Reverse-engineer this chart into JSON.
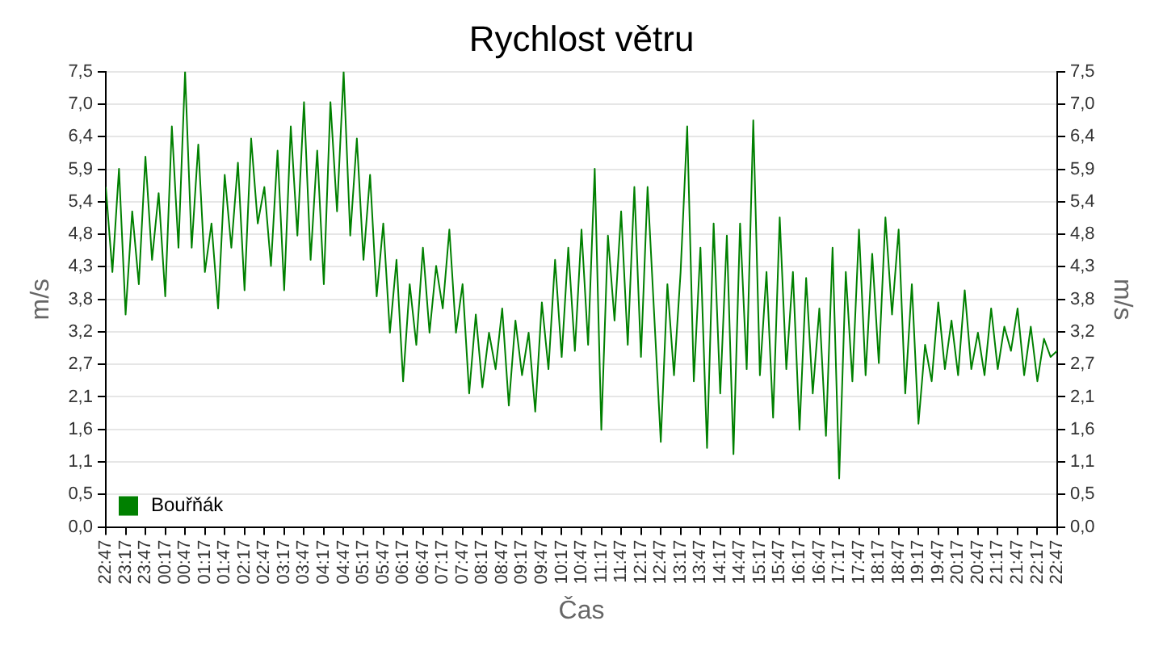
{
  "chart_data": {
    "type": "line",
    "title": "Rychlost větru",
    "xlabel": "Čas",
    "ylabel": "m/s",
    "y2label": "m/s",
    "x": [
      "--01-01T22:47",
      "--01-01T22:57",
      "--01-01T23:07",
      "--01-01T23:17",
      "--01-01T23:27",
      "--01-01T23:37",
      "--01-01T23:47",
      "--01-01T23:57",
      "--01-02T00:07",
      "--01-02T00:17",
      "--01-02T00:27",
      "--01-02T00:37",
      "--01-02T00:47",
      "--01-02T00:57",
      "--01-02T01:07",
      "--01-02T01:17",
      "--01-02T01:27",
      "--01-02T01:37",
      "--01-02T01:47",
      "--01-02T01:57",
      "--01-02T02:07",
      "--01-02T02:17",
      "--01-02T02:27",
      "--01-02T02:37",
      "--01-02T02:47",
      "--01-02T02:57",
      "--01-02T03:07",
      "--01-02T03:17",
      "--01-02T03:27",
      "--01-02T03:37",
      "--01-02T03:47",
      "--01-02T03:57",
      "--01-02T04:07",
      "--01-02T04:17",
      "--01-02T04:27",
      "--01-02T04:37",
      "--01-02T04:47",
      "--01-02T04:57",
      "--01-02T05:07",
      "--01-02T05:17",
      "--01-02T05:27",
      "--01-02T05:37",
      "--01-02T05:47",
      "--01-02T05:57",
      "--01-02T06:07",
      "--01-02T06:17",
      "--01-02T06:27",
      "--01-02T06:37",
      "--01-02T06:47",
      "--01-02T06:57",
      "--01-02T07:07",
      "--01-02T07:17",
      "--01-02T07:27",
      "--01-02T07:37",
      "--01-02T07:47",
      "--01-02T07:57",
      "--01-02T08:07",
      "--01-02T08:17",
      "--01-02T08:27",
      "--01-02T08:37",
      "--01-02T08:47",
      "--01-02T08:57",
      "--01-02T09:07",
      "--01-02T09:17",
      "--01-02T09:27",
      "--01-02T09:37",
      "--01-02T09:47",
      "--01-02T09:57",
      "--01-02T10:07",
      "--01-02T10:17",
      "--01-02T10:27",
      "--01-02T10:37",
      "--01-02T10:47",
      "--01-02T10:57",
      "--01-02T11:07",
      "--01-02T11:17",
      "--01-02T11:27",
      "--01-02T11:37",
      "--01-02T11:47",
      "--01-02T11:57",
      "--01-02T12:07",
      "--01-02T12:17",
      "--01-02T12:27",
      "--01-02T12:37",
      "--01-02T12:47",
      "--01-02T12:57",
      "--01-02T13:07",
      "--01-02T13:17",
      "--01-02T13:27",
      "--01-02T13:37",
      "--01-02T13:47",
      "--01-02T13:57",
      "--01-02T14:07",
      "--01-02T14:17",
      "--01-02T14:27",
      "--01-02T14:37",
      "--01-02T14:47",
      "--01-02T14:57",
      "--01-02T15:07",
      "--01-02T15:17",
      "--01-02T15:27",
      "--01-02T15:37",
      "--01-02T15:47",
      "--01-02T15:57",
      "--01-02T16:07",
      "--01-02T16:17",
      "--01-02T16:27",
      "--01-02T16:37",
      "--01-02T16:47",
      "--01-02T16:57",
      "--01-02T17:07",
      "--01-02T17:17",
      "--01-02T17:27",
      "--01-02T17:37",
      "--01-02T17:47",
      "--01-02T17:57",
      "--01-02T18:07",
      "--01-02T18:17",
      "--01-02T18:27",
      "--01-02T18:37",
      "--01-02T18:47",
      "--01-02T18:57",
      "--01-02T19:07",
      "--01-02T19:17",
      "--01-02T19:27",
      "--01-02T19:37",
      "--01-02T19:47",
      "--01-02T19:57",
      "--01-02T20:07",
      "--01-02T20:17",
      "--01-02T20:27",
      "--01-02T20:37",
      "--01-02T20:47",
      "--01-02T20:57",
      "--01-02T21:07",
      "--01-02T21:17",
      "--01-02T21:27",
      "--01-02T21:37",
      "--01-02T21:47",
      "--01-02T21:57",
      "--01-02T22:07",
      "--01-02T22:17",
      "--01-02T22:27",
      "--01-02T22:37",
      "--01-02T22:47"
    ],
    "series": [
      {
        "name": "Bouřňák",
        "color": "#008000",
        "values": [
          5.6,
          4.2,
          5.9,
          3.5,
          5.2,
          4.0,
          6.1,
          4.4,
          5.5,
          3.8,
          6.6,
          4.6,
          7.5,
          4.6,
          6.3,
          4.2,
          5.0,
          3.6,
          5.8,
          4.6,
          6.0,
          3.9,
          6.4,
          5.0,
          5.6,
          4.3,
          6.2,
          3.9,
          6.6,
          4.8,
          7.0,
          4.4,
          6.2,
          4.0,
          7.0,
          5.2,
          7.5,
          4.8,
          6.4,
          4.4,
          5.8,
          3.8,
          5.0,
          3.2,
          4.4,
          2.4,
          4.0,
          3.0,
          4.6,
          3.2,
          4.3,
          3.6,
          4.9,
          3.2,
          4.0,
          2.2,
          3.5,
          2.3,
          3.2,
          2.6,
          3.6,
          2.0,
          3.4,
          2.5,
          3.2,
          1.9,
          3.7,
          2.6,
          4.4,
          2.8,
          4.6,
          2.9,
          4.9,
          3.0,
          5.9,
          1.6,
          4.8,
          3.4,
          5.2,
          3.0,
          5.6,
          2.8,
          5.6,
          3.5,
          1.4,
          4.0,
          2.5,
          4.2,
          6.6,
          2.4,
          4.6,
          1.3,
          5.0,
          2.2,
          4.8,
          1.2,
          5.0,
          2.6,
          6.7,
          2.5,
          4.2,
          1.8,
          5.1,
          2.6,
          4.2,
          1.6,
          4.1,
          2.2,
          3.6,
          1.5,
          4.6,
          0.8,
          4.2,
          2.4,
          4.9,
          2.5,
          4.5,
          2.7,
          5.1,
          3.5,
          4.9,
          2.2,
          4.0,
          1.7,
          3.0,
          2.4,
          3.7,
          2.6,
          3.4,
          2.5,
          3.9,
          2.6,
          3.2,
          2.5,
          3.6,
          2.6,
          3.3,
          2.9,
          3.6,
          2.5,
          3.3,
          2.4,
          3.1,
          2.8,
          2.9
        ]
      }
    ],
    "xlim": [
      "--01-01T22:47",
      "--01-02T22:47"
    ],
    "xticks": [
      {
        "value": "--01-01T22:47",
        "label": "22:47"
      },
      {
        "value": "--01-01T23:17",
        "label": "23:17"
      },
      {
        "value": "--01-01T23:47",
        "label": "23:47"
      },
      {
        "value": "--01-02T00:17",
        "label": "00:17"
      },
      {
        "value": "--01-02T00:47",
        "label": "00:47"
      },
      {
        "value": "--01-02T01:17",
        "label": "01:17"
      },
      {
        "value": "--01-02T01:47",
        "label": "01:47"
      },
      {
        "value": "--01-02T02:17",
        "label": "02:17"
      },
      {
        "value": "--01-02T02:47",
        "label": "02:47"
      },
      {
        "value": "--01-02T03:17",
        "label": "03:17"
      },
      {
        "value": "--01-02T03:47",
        "label": "03:47"
      },
      {
        "value": "--01-02T04:17",
        "label": "04:17"
      },
      {
        "value": "--01-02T04:47",
        "label": "04:47"
      },
      {
        "value": "--01-02T05:17",
        "label": "05:17"
      },
      {
        "value": "--01-02T05:47",
        "label": "05:47"
      },
      {
        "value": "--01-02T06:17",
        "label": "06:17"
      },
      {
        "value": "--01-02T06:47",
        "label": "06:47"
      },
      {
        "value": "--01-02T07:17",
        "label": "07:17"
      },
      {
        "value": "--01-02T07:47",
        "label": "07:47"
      },
      {
        "value": "--01-02T08:17",
        "label": "08:17"
      },
      {
        "value": "--01-02T08:47",
        "label": "08:47"
      },
      {
        "value": "--01-02T09:17",
        "label": "09:17"
      },
      {
        "value": "--01-02T09:47",
        "label": "09:47"
      },
      {
        "value": "--01-02T10:17",
        "label": "10:17"
      },
      {
        "value": "--01-02T10:47",
        "label": "10:47"
      },
      {
        "value": "--01-02T11:17",
        "label": "11:17"
      },
      {
        "value": "--01-02T11:47",
        "label": "11:47"
      },
      {
        "value": "--01-02T12:17",
        "label": "12:17"
      },
      {
        "value": "--01-02T12:47",
        "label": "12:47"
      },
      {
        "value": "--01-02T13:17",
        "label": "13:17"
      },
      {
        "value": "--01-02T13:47",
        "label": "13:47"
      },
      {
        "value": "--01-02T14:17",
        "label": "14:17"
      },
      {
        "value": "--01-02T14:47",
        "label": "14:47"
      },
      {
        "value": "--01-02T15:17",
        "label": "15:17"
      },
      {
        "value": "--01-02T15:47",
        "label": "15:47"
      },
      {
        "value": "--01-02T16:17",
        "label": "16:17"
      },
      {
        "value": "--01-02T16:47",
        "label": "16:47"
      },
      {
        "value": "--01-02T17:17",
        "label": "17:17"
      },
      {
        "value": "--01-02T17:47",
        "label": "17:47"
      },
      {
        "value": "--01-02T18:17",
        "label": "18:17"
      },
      {
        "value": "--01-02T18:47",
        "label": "18:47"
      },
      {
        "value": "--01-02T19:17",
        "label": "19:17"
      },
      {
        "value": "--01-02T19:47",
        "label": "19:47"
      },
      {
        "value": "--01-02T20:17",
        "label": "20:17"
      },
      {
        "value": "--01-02T20:47",
        "label": "20:47"
      },
      {
        "value": "--01-02T21:17",
        "label": "21:17"
      },
      {
        "value": "--01-02T21:47",
        "label": "21:47"
      },
      {
        "value": "--01-02T22:17",
        "label": "22:17"
      },
      {
        "value": "--01-02T22:47",
        "label": "22:47"
      }
    ],
    "ylim": [
      0,
      7.5
    ],
    "yticks": [
      {
        "value": 0,
        "label": "0,0"
      },
      {
        "value": 0.536,
        "label": "0,5"
      },
      {
        "value": 1.071,
        "label": "1,1"
      },
      {
        "value": 1.607,
        "label": "1,6"
      },
      {
        "value": 2.143,
        "label": "2,1"
      },
      {
        "value": 2.679,
        "label": "2,7"
      },
      {
        "value": 3.214,
        "label": "3,2"
      },
      {
        "value": 3.75,
        "label": "3,8"
      },
      {
        "value": 4.286,
        "label": "4,3"
      },
      {
        "value": 4.821,
        "label": "4,8"
      },
      {
        "value": 5.357,
        "label": "5,4"
      },
      {
        "value": 5.893,
        "label": "5,9"
      },
      {
        "value": 6.429,
        "label": "6,4"
      },
      {
        "value": 6.964,
        "label": "7,0"
      },
      {
        "value": 7.5,
        "label": "7,5"
      }
    ],
    "y2lim": [
      0,
      7.5
    ],
    "y2ticks": [
      {
        "value": 0,
        "label": "0,0"
      },
      {
        "value": 0.536,
        "label": "0,5"
      },
      {
        "value": 1.071,
        "label": "1,1"
      },
      {
        "value": 1.607,
        "label": "1,6"
      },
      {
        "value": 2.143,
        "label": "2,1"
      },
      {
        "value": 2.679,
        "label": "2,7"
      },
      {
        "value": 3.214,
        "label": "3,2"
      },
      {
        "value": 3.75,
        "label": "3,8"
      },
      {
        "value": 4.286,
        "label": "4,3"
      },
      {
        "value": 4.821,
        "label": "4,8"
      },
      {
        "value": 5.357,
        "label": "5,4"
      },
      {
        "value": 5.893,
        "label": "5,9"
      },
      {
        "value": 6.429,
        "label": "6,4"
      },
      {
        "value": 6.964,
        "label": "7,0"
      },
      {
        "value": 7.5,
        "label": "7,5"
      }
    ],
    "grid": "y",
    "legend": "bottom left",
    "marker": "none",
    "line_style": "solid"
  }
}
